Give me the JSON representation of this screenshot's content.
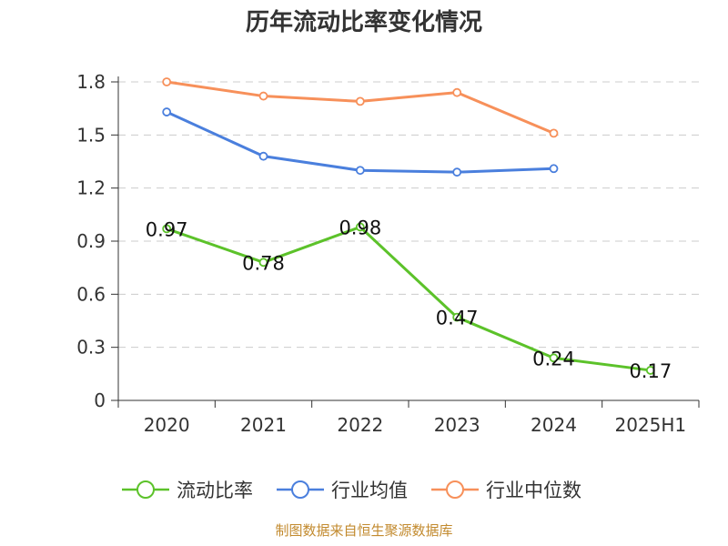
{
  "chart_data": {
    "type": "line",
    "title": "历年流动比率变化情况",
    "categories": [
      "2020",
      "2021",
      "2022",
      "2023",
      "2024",
      "2025H1"
    ],
    "y_tick_labels": [
      "0",
      "0.3",
      "0.6",
      "0.9",
      "1.2",
      "1.5",
      "1.8"
    ],
    "ylim": [
      0,
      1.8
    ],
    "y_ticks": [
      0,
      0.3,
      0.6,
      0.9,
      1.2,
      1.5,
      1.8
    ],
    "grid": true,
    "legend_position": "bottom",
    "series": [
      {
        "name": "流动比率",
        "color": "#5cc22a",
        "values": [
          0.97,
          0.78,
          0.98,
          0.47,
          0.24,
          0.17
        ],
        "labels": [
          "0.97",
          "0.78",
          "0.98",
          "0.47",
          "0.24",
          "0.17"
        ]
      },
      {
        "name": "行业均值",
        "color": "#4a7fdd",
        "values": [
          1.63,
          1.38,
          1.3,
          1.29,
          1.31,
          null
        ]
      },
      {
        "name": "行业中位数",
        "color": "#f7905a",
        "values": [
          1.8,
          1.72,
          1.69,
          1.74,
          1.51,
          null
        ]
      }
    ]
  },
  "source": "制图数据来自恒生聚源数据库"
}
